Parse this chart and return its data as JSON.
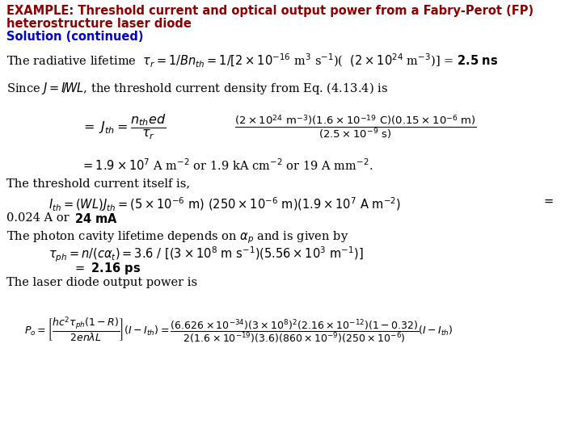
{
  "bg_color": "#ffffff",
  "title_line1": "EXAMPLE: Threshold current and optical output power from a Fabry-Perot (FP)",
  "title_line2": "heterostructure laser diode",
  "title_color": "#8B0000",
  "solution_text": "Solution (continued)",
  "solution_color": "#0000CD",
  "figsize": [
    7.2,
    5.4
  ],
  "dpi": 100
}
